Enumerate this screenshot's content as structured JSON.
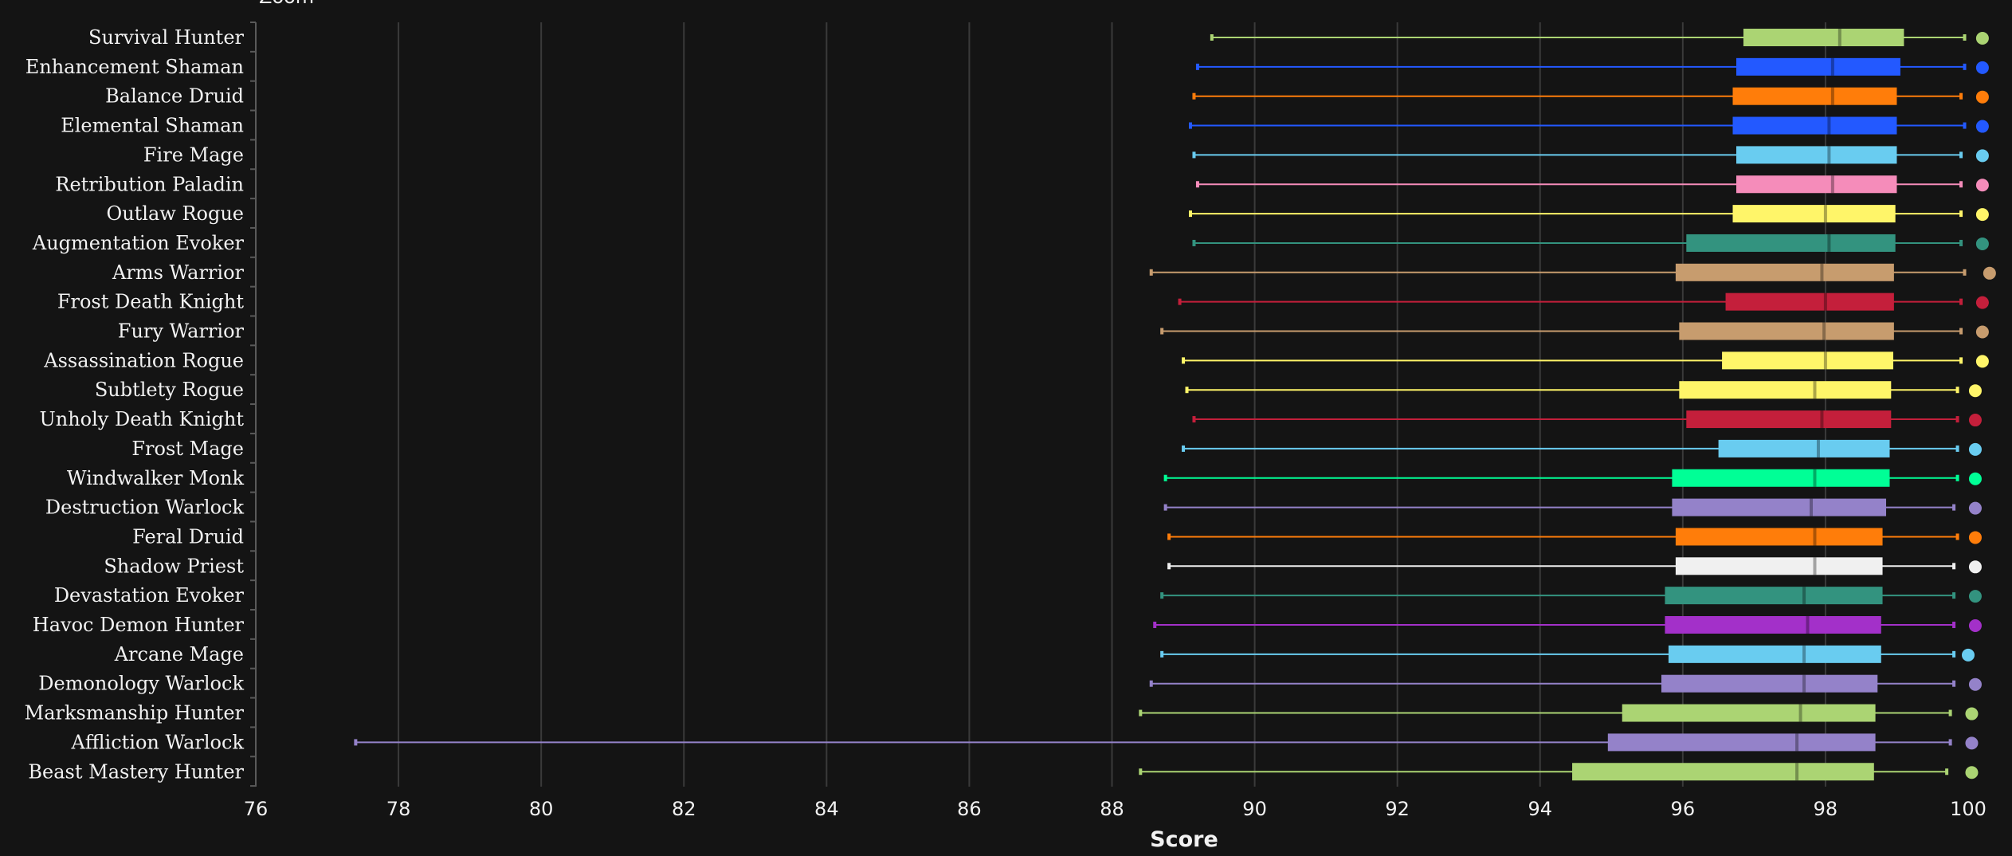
{
  "top_partial_text": "Zoom",
  "chart_data": {
    "type": "boxplot",
    "xlabel": "Score",
    "xlim": [
      76,
      100
    ],
    "xticks": [
      76,
      78,
      80,
      82,
      84,
      86,
      88,
      90,
      92,
      94,
      96,
      98,
      100
    ],
    "grid": "vertical",
    "series": [
      {
        "name": "Survival Hunter",
        "color": "#abd473",
        "min": 89.4,
        "q1": 96.85,
        "median": 98.2,
        "q3": 99.1,
        "max": 99.95,
        "outlier": 100.2
      },
      {
        "name": "Enhancement Shaman",
        "color": "#2359ff",
        "min": 89.2,
        "q1": 96.75,
        "median": 98.1,
        "q3": 99.05,
        "max": 99.95,
        "outlier": 100.2
      },
      {
        "name": "Balance Druid",
        "color": "#ff7d0a",
        "min": 89.15,
        "q1": 96.7,
        "median": 98.1,
        "q3": 99.0,
        "max": 99.9,
        "outlier": 100.2
      },
      {
        "name": "Elemental Shaman",
        "color": "#2359ff",
        "min": 89.1,
        "q1": 96.7,
        "median": 98.05,
        "q3": 99.0,
        "max": 99.95,
        "outlier": 100.2
      },
      {
        "name": "Fire Mage",
        "color": "#69ccf0",
        "min": 89.15,
        "q1": 96.75,
        "median": 98.05,
        "q3": 99.0,
        "max": 99.9,
        "outlier": 100.2
      },
      {
        "name": "Retribution Paladin",
        "color": "#f58cba",
        "min": 89.2,
        "q1": 96.75,
        "median": 98.1,
        "q3": 99.0,
        "max": 99.9,
        "outlier": 100.2
      },
      {
        "name": "Outlaw Rogue",
        "color": "#fff569",
        "min": 89.1,
        "q1": 96.7,
        "median": 98.0,
        "q3": 98.98,
        "max": 99.9,
        "outlier": 100.2
      },
      {
        "name": "Augmentation Evoker",
        "color": "#33937f",
        "min": 89.15,
        "q1": 96.05,
        "median": 98.05,
        "q3": 98.98,
        "max": 99.9,
        "outlier": 100.2
      },
      {
        "name": "Arms Warrior",
        "color": "#c79c6e",
        "min": 88.55,
        "q1": 95.9,
        "median": 97.95,
        "q3": 98.96,
        "max": 99.95,
        "outlier": 100.3
      },
      {
        "name": "Frost Death Knight",
        "color": "#c41f3b",
        "min": 88.95,
        "q1": 96.6,
        "median": 98.0,
        "q3": 98.96,
        "max": 99.9,
        "outlier": 100.2
      },
      {
        "name": "Fury Warrior",
        "color": "#c79c6e",
        "min": 88.7,
        "q1": 95.95,
        "median": 97.98,
        "q3": 98.96,
        "max": 99.9,
        "outlier": 100.2
      },
      {
        "name": "Assassination Rogue",
        "color": "#fff569",
        "min": 89.0,
        "q1": 96.55,
        "median": 98.0,
        "q3": 98.95,
        "max": 99.9,
        "outlier": 100.2
      },
      {
        "name": "Subtlety Rogue",
        "color": "#fff569",
        "min": 89.05,
        "q1": 95.95,
        "median": 97.85,
        "q3": 98.92,
        "max": 99.85,
        "outlier": 100.1
      },
      {
        "name": "Unholy Death Knight",
        "color": "#c41f3b",
        "min": 89.15,
        "q1": 96.05,
        "median": 97.95,
        "q3": 98.92,
        "max": 99.85,
        "outlier": 100.1
      },
      {
        "name": "Frost Mage",
        "color": "#69ccf0",
        "min": 89.0,
        "q1": 96.5,
        "median": 97.9,
        "q3": 98.9,
        "max": 99.85,
        "outlier": 100.1
      },
      {
        "name": "Windwalker Monk",
        "color": "#00ff96",
        "min": 88.75,
        "q1": 95.85,
        "median": 97.85,
        "q3": 98.9,
        "max": 99.85,
        "outlier": 100.1
      },
      {
        "name": "Destruction Warlock",
        "color": "#9482c9",
        "min": 88.75,
        "q1": 95.85,
        "median": 97.8,
        "q3": 98.85,
        "max": 99.8,
        "outlier": 100.1
      },
      {
        "name": "Feral Druid",
        "color": "#ff7d0a",
        "min": 88.8,
        "q1": 95.9,
        "median": 97.85,
        "q3": 98.8,
        "max": 99.85,
        "outlier": 100.1
      },
      {
        "name": "Shadow Priest",
        "color": "#f0f0f0",
        "min": 88.8,
        "q1": 95.9,
        "median": 97.85,
        "q3": 98.8,
        "max": 99.8,
        "outlier": 100.1
      },
      {
        "name": "Devastation Evoker",
        "color": "#33937f",
        "min": 88.7,
        "q1": 95.75,
        "median": 97.7,
        "q3": 98.8,
        "max": 99.8,
        "outlier": 100.1
      },
      {
        "name": "Havoc Demon Hunter",
        "color": "#a330c9",
        "min": 88.6,
        "q1": 95.75,
        "median": 97.75,
        "q3": 98.78,
        "max": 99.8,
        "outlier": 100.1
      },
      {
        "name": "Arcane Mage",
        "color": "#69ccf0",
        "min": 88.7,
        "q1": 95.8,
        "median": 97.7,
        "q3": 98.78,
        "max": 99.8,
        "outlier": 100.0
      },
      {
        "name": "Demonology Warlock",
        "color": "#9482c9",
        "min": 88.55,
        "q1": 95.7,
        "median": 97.7,
        "q3": 98.73,
        "max": 99.8,
        "outlier": 100.1
      },
      {
        "name": "Marksmanship Hunter",
        "color": "#abd473",
        "min": 88.4,
        "q1": 95.15,
        "median": 97.65,
        "q3": 98.7,
        "max": 99.75,
        "outlier": 100.05
      },
      {
        "name": "Affliction Warlock",
        "color": "#9482c9",
        "min": 77.4,
        "q1": 94.95,
        "median": 97.6,
        "q3": 98.7,
        "max": 99.75,
        "outlier": 100.05
      },
      {
        "name": "Beast Mastery Hunter",
        "color": "#abd473",
        "min": 88.4,
        "q1": 94.45,
        "median": 97.6,
        "q3": 98.68,
        "max": 99.7,
        "outlier": 100.05
      }
    ]
  }
}
